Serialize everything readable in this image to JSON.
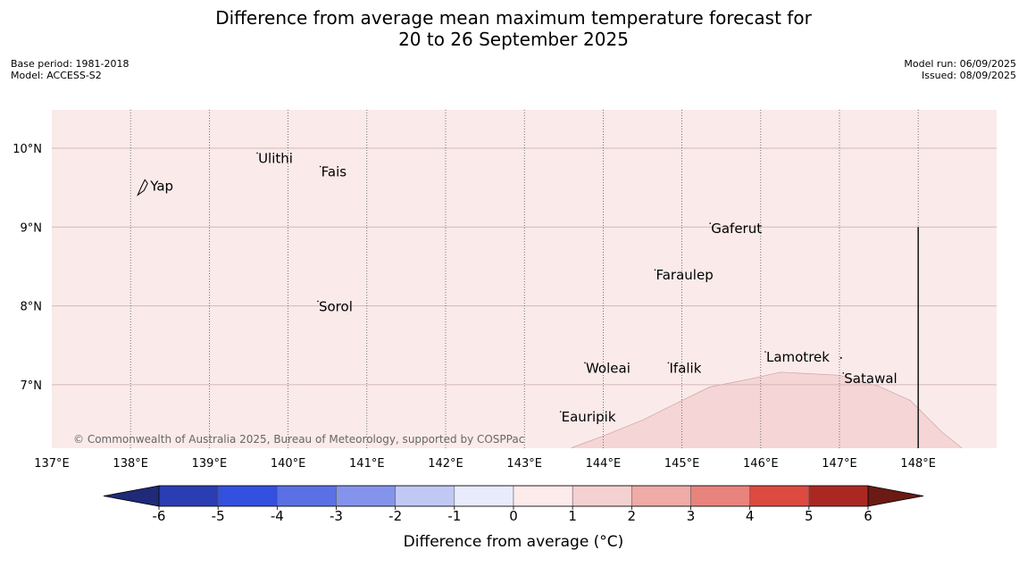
{
  "title": {
    "line1": "Difference from average mean maximum temperature forecast for",
    "line2": "20 to 26 September 2025"
  },
  "meta_left": {
    "base_period": "Base period: 1981-2018",
    "model": "Model: ACCESS-S2"
  },
  "meta_right": {
    "model_run": "Model run: 06/09/2025",
    "issued": "Issued: 08/09/2025"
  },
  "map": {
    "lon_range": [
      137.0,
      149.0
    ],
    "lat_range": [
      6.2,
      10.5
    ],
    "lon_ticks": [
      {
        "value": 137,
        "label": "137°E"
      },
      {
        "value": 138,
        "label": "138°E"
      },
      {
        "value": 139,
        "label": "139°E"
      },
      {
        "value": 140,
        "label": "140°E"
      },
      {
        "value": 141,
        "label": "141°E"
      },
      {
        "value": 142,
        "label": "142°E"
      },
      {
        "value": 143,
        "label": "143°E"
      },
      {
        "value": 144,
        "label": "144°E"
      },
      {
        "value": 145,
        "label": "145°E"
      },
      {
        "value": 146,
        "label": "146°E"
      },
      {
        "value": 147,
        "label": "147°E"
      },
      {
        "value": 148,
        "label": "148°E"
      }
    ],
    "lat_ticks": [
      {
        "value": 10,
        "label": "10°N"
      },
      {
        "value": 9,
        "label": "9°N"
      },
      {
        "value": 8,
        "label": "8°N"
      },
      {
        "value": 7,
        "label": "7°N"
      }
    ],
    "background_color": "#fbeaea",
    "anomaly_region_color": "#f5d5d5",
    "anomaly_region": {
      "category": "1 to 2",
      "outline": [
        [
          143.6,
          6.2
        ],
        [
          144.0,
          6.35
        ],
        [
          144.5,
          6.55
        ],
        [
          145.0,
          6.8
        ],
        [
          145.35,
          6.97
        ],
        [
          145.6,
          7.02
        ],
        [
          145.9,
          7.08
        ],
        [
          146.25,
          7.16
        ],
        [
          146.6,
          7.14
        ],
        [
          147.0,
          7.12
        ],
        [
          147.5,
          6.98
        ],
        [
          147.9,
          6.8
        ],
        [
          148.1,
          6.6
        ],
        [
          148.3,
          6.4
        ],
        [
          148.55,
          6.2
        ]
      ]
    },
    "boundary_line": {
      "lon": 148.0,
      "lat_top": 9.0,
      "lat_bottom": 6.2
    },
    "places": [
      {
        "name": "Yap",
        "lon": 138.25,
        "lat": 9.52
      },
      {
        "name": "Ulithi",
        "lon": 139.62,
        "lat": 9.87
      },
      {
        "name": "Fais",
        "lon": 140.42,
        "lat": 9.7
      },
      {
        "name": "Gaferut",
        "lon": 145.37,
        "lat": 8.98
      },
      {
        "name": "Faraulep",
        "lon": 144.67,
        "lat": 8.39
      },
      {
        "name": "Sorol",
        "lon": 140.39,
        "lat": 7.99
      },
      {
        "name": "Woleai",
        "lon": 143.78,
        "lat": 7.21
      },
      {
        "name": "Ifalik",
        "lon": 144.84,
        "lat": 7.21
      },
      {
        "name": "Lamotrek",
        "lon": 146.07,
        "lat": 7.35
      },
      {
        "name": "Satawal",
        "lon": 147.06,
        "lat": 7.08
      },
      {
        "name": "Eauripik",
        "lon": 143.47,
        "lat": 6.59
      }
    ],
    "copyright": "© Commonwealth of Australia 2025, Bureau of Meteorology, supported by COSPPac"
  },
  "colorbar": {
    "title": "Difference from average (°C)",
    "labels": [
      "-6",
      "-5",
      "-4",
      "-3",
      "-2",
      "-1",
      "0",
      "1",
      "2",
      "3",
      "4",
      "5",
      "6"
    ],
    "under_color": "#1f2a78",
    "over_color": "#6b1a14",
    "colors": [
      "#2a3db2",
      "#3350e0",
      "#5a70e4",
      "#8494ec",
      "#c0c8f4",
      "#e8ebfb",
      "#fdeaea",
      "#f5d0d0",
      "#efaba6",
      "#e8837d",
      "#dc4a40",
      "#ab2822"
    ]
  }
}
